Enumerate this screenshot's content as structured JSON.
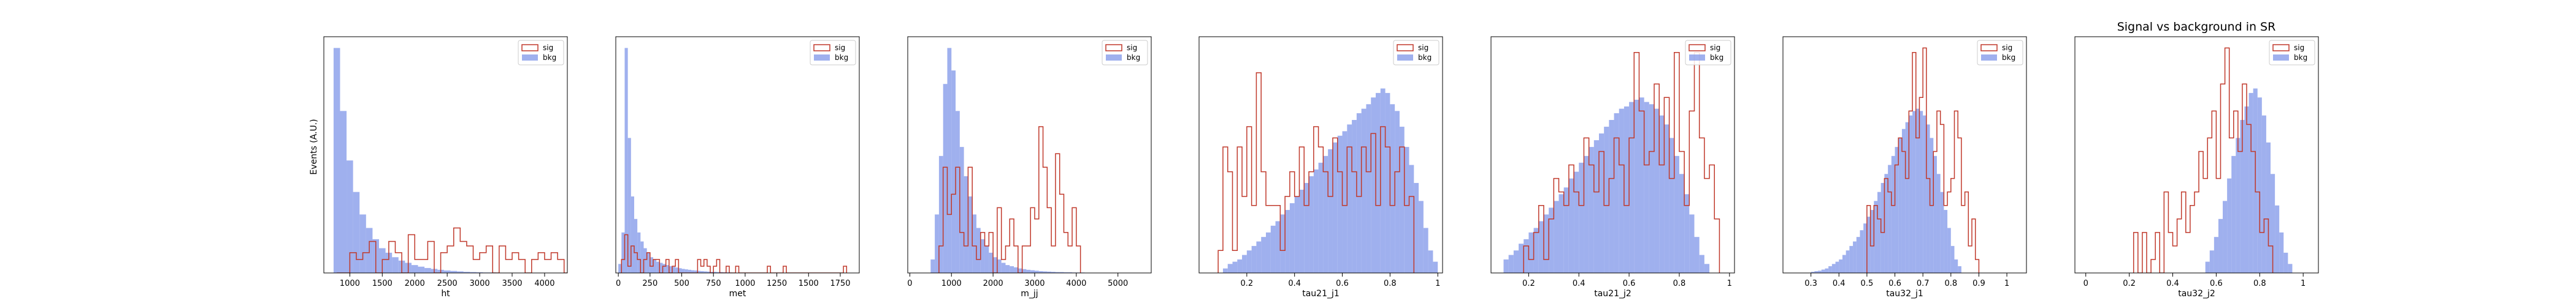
{
  "figure": {
    "title": "Signal vs background in SR",
    "ylabel": "Events (A.U.)",
    "legend": [
      "sig",
      "bkg"
    ],
    "colors": {
      "sig": "#c0392b",
      "bkg": "#7f95e8"
    }
  },
  "chart_data": [
    {
      "type": "bar",
      "xlabel": "ht",
      "xlim": [
        600,
        4350
      ],
      "ylim": [
        0,
        1.05
      ],
      "xticks": [
        1000,
        1500,
        2000,
        2500,
        3000,
        3500,
        4000
      ],
      "legend_position": "top-right",
      "series": [
        {
          "name": "bkg",
          "style": "filled",
          "bin_start": 750,
          "bin_width": 100,
          "values": [
            1.0,
            0.72,
            0.5,
            0.36,
            0.26,
            0.2,
            0.15,
            0.11,
            0.09,
            0.07,
            0.055,
            0.045,
            0.035,
            0.028,
            0.022,
            0.018,
            0.014,
            0.011,
            0.009,
            0.007,
            0.005,
            0.004,
            0.003,
            0.002,
            0.002,
            0.001
          ]
        },
        {
          "name": "sig",
          "style": "step",
          "bin_start": 800,
          "bin_width": 100,
          "values": [
            0,
            0,
            0.09,
            0.06,
            0.09,
            0.14,
            0,
            0.06,
            0.14,
            0.09,
            0,
            0.17,
            0.06,
            0.06,
            0.14,
            0,
            0.09,
            0.12,
            0.2,
            0.14,
            0.12,
            0.06,
            0.09,
            0.12,
            0,
            0.12,
            0.06,
            0.09,
            0.06,
            0,
            0.06,
            0.09,
            0.06,
            0.09,
            0.06,
            0,
            0.09,
            0.09,
            0,
            0.06,
            0,
            0.09,
            0.06,
            0.17
          ]
        }
      ]
    },
    {
      "type": "bar",
      "xlabel": "met",
      "xlim": [
        -20,
        1900
      ],
      "ylim": [
        0,
        1.05
      ],
      "xticks": [
        0,
        250,
        500,
        750,
        1000,
        1250,
        1500,
        1750
      ],
      "legend_position": "top-right",
      "series": [
        {
          "name": "bkg",
          "style": "filled",
          "bin_start": 0,
          "bin_width": 25,
          "values": [
            0.04,
            0.18,
            1.0,
            0.6,
            0.34,
            0.24,
            0.18,
            0.14,
            0.11,
            0.09,
            0.07,
            0.06,
            0.05,
            0.045,
            0.04,
            0.035,
            0.03,
            0.027,
            0.024,
            0.021,
            0.018,
            0.016,
            0.014,
            0.012,
            0.011,
            0.009,
            0.008,
            0.007,
            0.006,
            0.005,
            0.005,
            0.004,
            0.004,
            0.003,
            0.003,
            0.002
          ]
        },
        {
          "name": "sig",
          "style": "step",
          "bin_start": 25,
          "bin_width": 25,
          "values": [
            0.06,
            0.17,
            0.03,
            0.12,
            0.09,
            0.06,
            0,
            0.06,
            0.09,
            0.03,
            0.06,
            0.06,
            0,
            0.03,
            0.06,
            0,
            0.03,
            0.06,
            0,
            0,
            0,
            0,
            0,
            0,
            0.06,
            0.03,
            0.06,
            0.03,
            0,
            0.03,
            0.06,
            0,
            0,
            0.03,
            0,
            0,
            0.03,
            0,
            0,
            0,
            0,
            0,
            0,
            0,
            0,
            0,
            0.03,
            0,
            0,
            0,
            0,
            0.03,
            0,
            0,
            0,
            0,
            0,
            0,
            0,
            0,
            0,
            0,
            0,
            0,
            0,
            0,
            0,
            0,
            0,
            0,
            0.03
          ]
        }
      ]
    },
    {
      "type": "bar",
      "xlabel": "m_jj",
      "xlim": [
        -50,
        5800
      ],
      "ylim": [
        0,
        1.05
      ],
      "xticks": [
        0,
        1000,
        2000,
        3000,
        4000,
        5000
      ],
      "legend_position": "top-right",
      "series": [
        {
          "name": "bkg",
          "style": "filled",
          "bin_start": 500,
          "bin_width": 100,
          "values": [
            0.06,
            0.26,
            0.52,
            0.84,
            1.0,
            0.9,
            0.72,
            0.56,
            0.43,
            0.34,
            0.26,
            0.2,
            0.15,
            0.12,
            0.09,
            0.07,
            0.06,
            0.045,
            0.035,
            0.03,
            0.025,
            0.02,
            0.017,
            0.014,
            0.012,
            0.01,
            0.008,
            0.007,
            0.006,
            0.005,
            0.004,
            0.004,
            0.003,
            0.003,
            0.002,
            0.002,
            0.002,
            0.001,
            0.001,
            0.001,
            0.001
          ]
        },
        {
          "name": "sig",
          "style": "step",
          "bin_start": 700,
          "bin_width": 100,
          "values": [
            0.12,
            0.47,
            0.26,
            0.35,
            0.47,
            0.18,
            0.12,
            0.47,
            0.12,
            0.06,
            0.18,
            0.12,
            0.18,
            0,
            0.29,
            0.06,
            0.12,
            0.24,
            0.12,
            0,
            0.12,
            0.12,
            0.29,
            0.24,
            0.65,
            0.47,
            0.29,
            0.12,
            0.53,
            0.35,
            0.18,
            0.12,
            0.29,
            0.12
          ]
        }
      ]
    },
    {
      "type": "bar",
      "xlabel": "tau21_j1",
      "xlim": [
        0.0,
        1.02
      ],
      "ylim": [
        0,
        1.05
      ],
      "xticks": [
        0.2,
        0.4,
        0.6,
        0.8,
        1.0
      ],
      "legend_position": "top-right",
      "series": [
        {
          "name": "bkg",
          "style": "filled",
          "bin_start": 0.1,
          "bin_width": 0.02,
          "values": [
            0.02,
            0.04,
            0.05,
            0.06,
            0.08,
            0.1,
            0.12,
            0.14,
            0.16,
            0.18,
            0.21,
            0.23,
            0.26,
            0.28,
            0.31,
            0.34,
            0.37,
            0.4,
            0.43,
            0.46,
            0.49,
            0.52,
            0.55,
            0.58,
            0.61,
            0.63,
            0.66,
            0.68,
            0.71,
            0.73,
            0.75,
            0.78,
            0.8,
            0.82,
            0.8,
            0.75,
            0.72,
            0.65,
            0.56,
            0.48,
            0.4,
            0.32,
            0.2,
            0.1,
            0.05
          ]
        },
        {
          "name": "sig",
          "style": "step",
          "bin_start": 0.08,
          "bin_width": 0.02,
          "values": [
            0.1,
            0.56,
            0.45,
            0.1,
            0.56,
            0.34,
            0.65,
            0.3,
            0.89,
            0.45,
            0.3,
            0.3,
            0.3,
            0.1,
            0.34,
            0.45,
            0.34,
            0.56,
            0.3,
            0.45,
            0.65,
            0.56,
            0.45,
            0.34,
            0.6,
            0.45,
            0.3,
            0.56,
            0.45,
            0.34,
            0.56,
            0.45,
            0.62,
            0.3,
            0.65,
            0.56,
            0.3,
            0.45,
            0.56,
            0.3,
            0.34
          ]
        }
      ]
    },
    {
      "type": "bar",
      "xlabel": "tau21_j2",
      "xlim": [
        0.05,
        1.02
      ],
      "ylim": [
        0,
        1.05
      ],
      "xticks": [
        0.2,
        0.4,
        0.6,
        0.8,
        1.0
      ],
      "legend_position": "top-right",
      "series": [
        {
          "name": "bkg",
          "style": "filled",
          "bin_start": 0.1,
          "bin_width": 0.02,
          "values": [
            0.06,
            0.08,
            0.1,
            0.13,
            0.15,
            0.18,
            0.2,
            0.23,
            0.26,
            0.29,
            0.32,
            0.35,
            0.38,
            0.42,
            0.45,
            0.49,
            0.52,
            0.56,
            0.59,
            0.62,
            0.65,
            0.68,
            0.71,
            0.73,
            0.74,
            0.76,
            0.77,
            0.78,
            0.76,
            0.75,
            0.73,
            0.7,
            0.66,
            0.6,
            0.52,
            0.44,
            0.35,
            0.26,
            0.16,
            0.08,
            0.04
          ]
        },
        {
          "name": "sig",
          "style": "step",
          "bin_start": 0.18,
          "bin_width": 0.02,
          "values": [
            0.12,
            0.06,
            0.18,
            0.3,
            0.06,
            0.24,
            0.42,
            0.36,
            0.3,
            0.48,
            0.36,
            0.3,
            0.6,
            0.48,
            0.36,
            0.54,
            0.3,
            0.42,
            0.6,
            0.48,
            0.3,
            0.6,
            0.98,
            0.72,
            0.48,
            0.54,
            0.84,
            0.48,
            0.78,
            0.42,
            0.98,
            0.54,
            0.3,
            0.72,
            0.98,
            0.6,
            0.42,
            0.48,
            0.24
          ]
        }
      ]
    },
    {
      "type": "bar",
      "xlabel": "tau32_j1",
      "xlim": [
        0.2,
        1.07
      ],
      "ylim": [
        0,
        1.05
      ],
      "xticks": [
        0.3,
        0.4,
        0.5,
        0.6,
        0.7,
        0.8,
        0.9,
        1.0
      ],
      "legend_position": "top-right",
      "series": [
        {
          "name": "bkg",
          "style": "filled",
          "bin_start": 0.3,
          "bin_width": 0.0125,
          "values": [
            0.005,
            0.008,
            0.01,
            0.015,
            0.02,
            0.03,
            0.04,
            0.05,
            0.06,
            0.08,
            0.1,
            0.12,
            0.14,
            0.16,
            0.19,
            0.22,
            0.25,
            0.28,
            0.32,
            0.36,
            0.4,
            0.44,
            0.48,
            0.52,
            0.56,
            0.6,
            0.64,
            0.67,
            0.7,
            0.72,
            0.73,
            0.72,
            0.7,
            0.66,
            0.6,
            0.52,
            0.44,
            0.36,
            0.28,
            0.2,
            0.12,
            0.06,
            0.03
          ]
        },
        {
          "name": "sig",
          "style": "step",
          "bin_start": 0.5,
          "bin_width": 0.0125,
          "values": [
            0.3,
            0.12,
            0.3,
            0.24,
            0.18,
            0.42,
            0.36,
            0.3,
            0.48,
            0.6,
            0.54,
            0.42,
            0.72,
            0.98,
            0.6,
            0.78,
            1.0,
            0.42,
            0.3,
            0.54,
            0.72,
            0.66,
            0.3,
            0.36,
            0.42,
            0.72,
            0.6,
            0.3,
            0.36,
            0.12,
            0.24,
            0.06
          ]
        }
      ]
    },
    {
      "type": "bar",
      "xlabel": "tau32_j2",
      "xlim": [
        -0.05,
        1.07
      ],
      "ylim": [
        0,
        1.05
      ],
      "xticks": [
        0.0,
        0.2,
        0.4,
        0.6,
        0.8,
        1.0
      ],
      "legend_position": "top-right",
      "series": [
        {
          "name": "bkg",
          "style": "filled",
          "bin_start": 0.55,
          "bin_width": 0.02,
          "values": [
            0.05,
            0.1,
            0.16,
            0.24,
            0.32,
            0.42,
            0.52,
            0.6,
            0.68,
            0.74,
            0.8,
            0.82,
            0.78,
            0.7,
            0.58,
            0.44,
            0.3,
            0.18,
            0.09,
            0.04
          ]
        },
        {
          "name": "sig",
          "style": "step",
          "bin_start": 0.22,
          "bin_width": 0.02,
          "values": [
            0.18,
            0,
            0.18,
            0,
            0.06,
            0.18,
            0,
            0.36,
            0.18,
            0.12,
            0.24,
            0.36,
            0.18,
            0.3,
            0.36,
            0.54,
            0.42,
            0.6,
            0.72,
            0.42,
            0.84,
            1.0,
            0.6,
            0.72,
            0.54,
            0.84,
            0.66,
            0.54,
            0.36,
            0.18,
            0.24,
            0.12
          ]
        }
      ]
    }
  ]
}
